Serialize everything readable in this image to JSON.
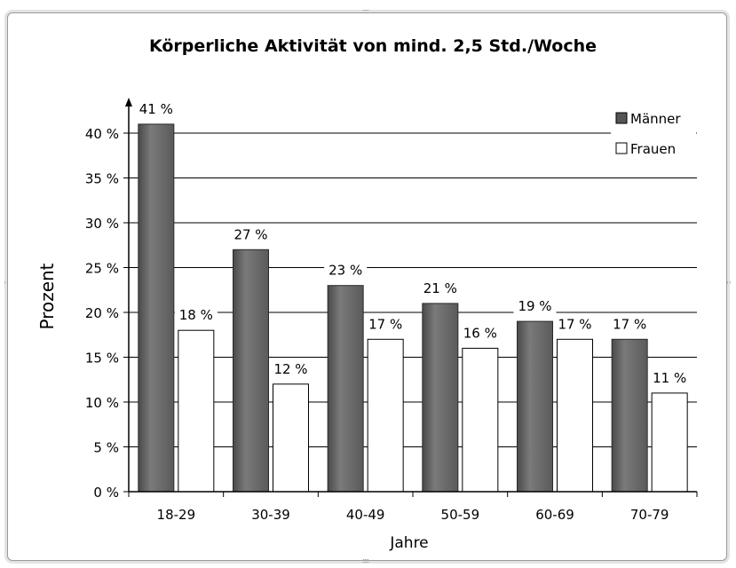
{
  "chart_data": {
    "type": "bar",
    "title": "Körperliche Aktivität von mind. 2,5 Std./Woche",
    "xlabel": "Jahre",
    "ylabel": "Prozent",
    "categories": [
      "18-29",
      "30-39",
      "40-49",
      "50-59",
      "60-69",
      "70-79"
    ],
    "series": [
      {
        "name": "Männer",
        "values": [
          41,
          27,
          23,
          21,
          19,
          17
        ],
        "color": "#6e6e6e"
      },
      {
        "name": "Frauen",
        "values": [
          18,
          12,
          17,
          16,
          17,
          11
        ],
        "color": "#ffffff"
      }
    ],
    "data_labels": {
      "Männer": [
        "41 %",
        "27 %",
        "23 %",
        "21 %",
        "19 %",
        "17 %"
      ],
      "Frauen": [
        "18 %",
        "12 %",
        "17 %",
        "16 %",
        "17 %",
        "11 %"
      ]
    },
    "ylim": [
      0,
      40
    ],
    "yticks": [
      "0 %",
      "5 %",
      "10 %",
      "15 %",
      "20 %",
      "25 %",
      "30 %",
      "35 %",
      "40 %"
    ],
    "grid": true,
    "legend_position": "top-right"
  }
}
